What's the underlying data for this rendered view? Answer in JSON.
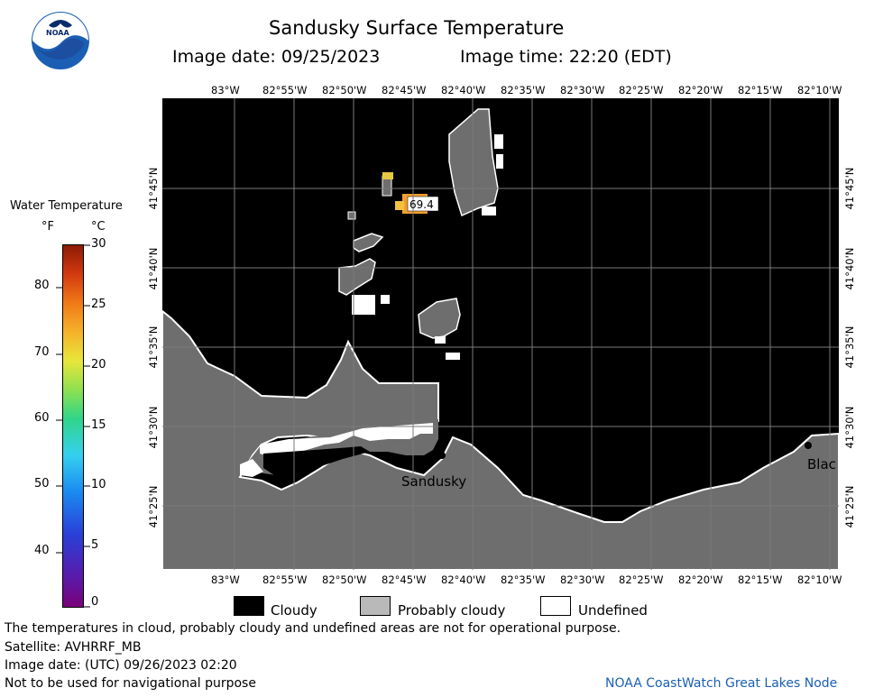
{
  "header": {
    "title": "Sandusky Surface Temperature",
    "image_date": "Image date: 09/25/2023",
    "image_time": "Image time: 22:20 (EDT)"
  },
  "logo": {
    "text": "NOAA"
  },
  "colorbar": {
    "title": "Water Temperature",
    "unit_f": "°F",
    "unit_c": "°C",
    "f_labels": [
      "80",
      "70",
      "60",
      "50",
      "40"
    ],
    "c_labels": [
      "30",
      "25",
      "20",
      "15",
      "10",
      "5",
      "0"
    ]
  },
  "map": {
    "lon_labels": [
      "83°W",
      "82°55'W",
      "82°50'W",
      "82°45'W",
      "82°40'W",
      "82°35'W",
      "82°30'W",
      "82°25'W",
      "82°20'W",
      "82°15'W",
      "82°10'W"
    ],
    "lat_labels": [
      "41°45'N",
      "41°40'N",
      "41°35'N",
      "41°30'N",
      "41°25'N"
    ],
    "temp_label": "69.4",
    "place_sandusky": "Sandusky",
    "place_blac": "Blac"
  },
  "colors": {
    "cloudy": "#000000",
    "probably_cloudy": "#6e6e6e",
    "undefined": "#ffffff",
    "grid": "#7a7a7a"
  },
  "legend": {
    "cloudy": "Cloudy",
    "probably_cloudy": "Probably cloudy",
    "undefined": "Undefined"
  },
  "footer": {
    "note": "The temperatures in cloud, probably cloudy and undefined areas are not for operational purpose.",
    "satellite": "Satellite: AVHRRF_MB",
    "utc_date": "Image date: (UTC) 09/26/2023  02:20",
    "nav": "Not to be used for navigational purpose",
    "credit": "NOAA CoastWatch Great Lakes Node"
  }
}
